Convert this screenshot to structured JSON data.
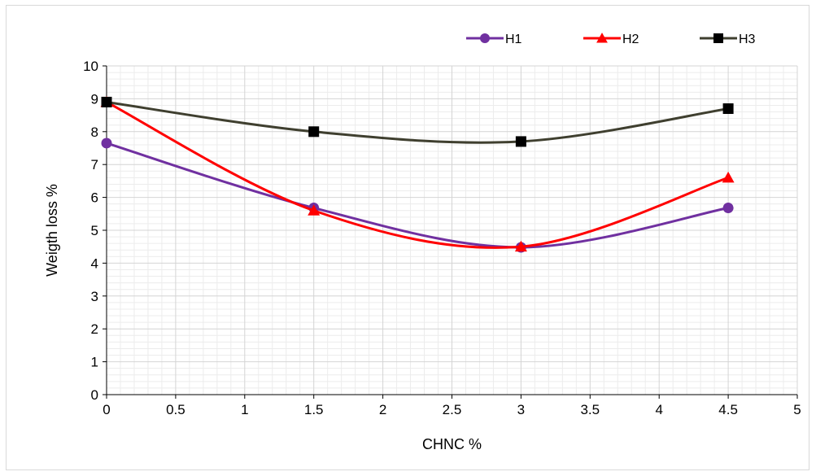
{
  "chart_data": {
    "type": "line",
    "smooth": true,
    "xlabel": "CHNC %",
    "ylabel": "Weigth loss %",
    "xlim": [
      0,
      5
    ],
    "ylim": [
      0,
      10
    ],
    "x_ticks": [
      "0",
      "0.5",
      "1",
      "1.5",
      "2",
      "2.5",
      "3",
      "3.5",
      "4",
      "4.5",
      "5"
    ],
    "y_ticks": [
      "0",
      "1",
      "2",
      "3",
      "4",
      "5",
      "6",
      "7",
      "8",
      "9",
      "10"
    ],
    "x_tick_values": [
      0,
      0.5,
      1,
      1.5,
      2,
      2.5,
      3,
      3.5,
      4,
      4.5,
      5
    ],
    "y_tick_values": [
      0,
      1,
      2,
      3,
      4,
      5,
      6,
      7,
      8,
      9,
      10
    ],
    "grid": {
      "major": true,
      "minor": true
    },
    "legend_position": "top-right",
    "x": [
      0,
      1.5,
      3,
      4.5
    ],
    "series": [
      {
        "name": "H1",
        "values": [
          7.65,
          5.68,
          4.48,
          5.68
        ],
        "color": "#7030a0",
        "marker": "circle"
      },
      {
        "name": "H2",
        "values": [
          8.9,
          5.6,
          4.5,
          6.6
        ],
        "color": "#ff0000",
        "marker": "triangle"
      },
      {
        "name": "H3",
        "values": [
          8.9,
          8.0,
          7.7,
          8.7
        ],
        "color": "#3f3f2f",
        "marker": "square"
      }
    ]
  }
}
